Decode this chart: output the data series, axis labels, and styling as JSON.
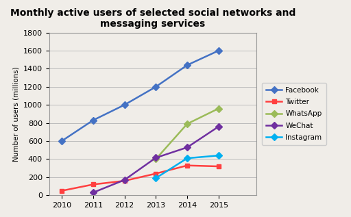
{
  "title": "Monthly active users of selected social networks and\nmessaging services",
  "xlabel": "",
  "ylabel": "Number of users (millions)",
  "years": [
    2010,
    2011,
    2012,
    2013,
    2014,
    2015
  ],
  "series": {
    "Facebook": {
      "values": [
        600,
        830,
        1000,
        1200,
        1440,
        1600
      ],
      "color": "#4472C4",
      "marker": "D",
      "markersize": 5
    },
    "Twitter": {
      "values": [
        50,
        120,
        160,
        240,
        330,
        320
      ],
      "color": "#FF4040",
      "marker": "s",
      "markersize": 5
    },
    "WhatsApp": {
      "values": [
        null,
        null,
        null,
        400,
        790,
        960
      ],
      "color": "#9BBB59",
      "marker": "D",
      "markersize": 5
    },
    "WeChat": {
      "values": [
        null,
        30,
        170,
        415,
        530,
        760
      ],
      "color": "#7030A0",
      "marker": "D",
      "markersize": 5
    },
    "Instagram": {
      "values": [
        null,
        null,
        null,
        190,
        410,
        440
      ],
      "color": "#00B0F0",
      "marker": "D",
      "markersize": 5
    }
  },
  "ylim": [
    0,
    1800
  ],
  "yticks": [
    0,
    200,
    400,
    600,
    800,
    1000,
    1200,
    1400,
    1600,
    1800
  ],
  "xlim": [
    2009.6,
    2016.2
  ],
  "plot_bg_color": "#F0EDE8",
  "fig_bg_color": "#F0EDE8",
  "title_fontsize": 10,
  "axis_label_fontsize": 7.5,
  "tick_fontsize": 8,
  "legend_fontsize": 7.5,
  "linewidth": 1.8
}
